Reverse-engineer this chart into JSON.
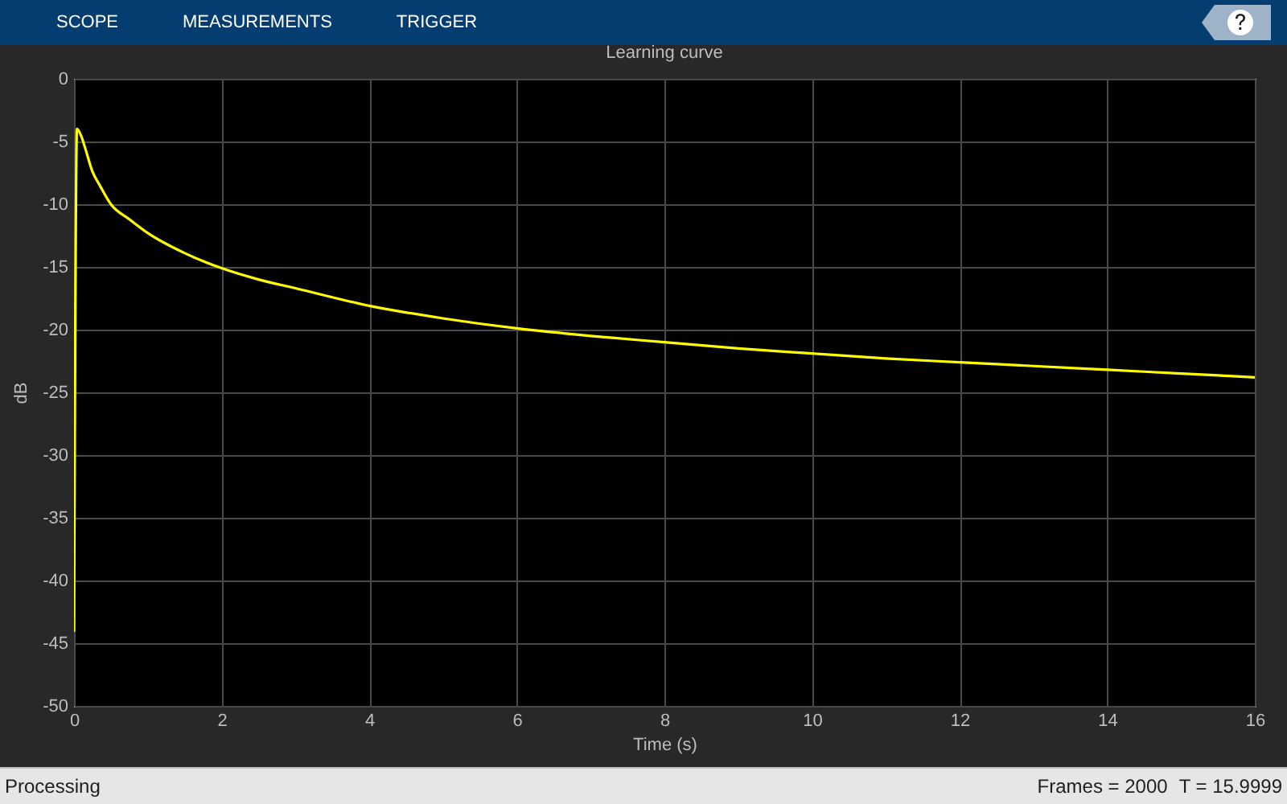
{
  "chart_data": {
    "type": "line",
    "title": "Learning curve",
    "xlabel": "Time (s)",
    "ylabel": "dB",
    "x": [
      0,
      0.04,
      0.1,
      0.15,
      0.25,
      0.35,
      0.5,
      0.75,
      1,
      1.5,
      2,
      2.5,
      3,
      4,
      5,
      6,
      7,
      8,
      9,
      10,
      11,
      12,
      13,
      14,
      15,
      16
    ],
    "series": [
      {
        "color": "#ffff00",
        "values": [
          -44,
          -4,
          -4.6,
          -5.5,
          -7.4,
          -8.5,
          -10,
          -11.2,
          -12.3,
          -13.9,
          -15.1,
          -16,
          -16.7,
          -18.1,
          -19.1,
          -19.9,
          -20.5,
          -21,
          -21.5,
          -21.9,
          -22.3,
          -22.6,
          -22.9,
          -23.2,
          -23.5,
          -23.8
        ]
      }
    ],
    "xlim": [
      0,
      16
    ],
    "xticks": [
      0,
      2,
      4,
      6,
      8,
      10,
      12,
      14,
      16
    ],
    "ylim": [
      -50,
      0
    ],
    "yticks": [
      0,
      -5,
      -10,
      -15,
      -20,
      -25,
      -30,
      -35,
      -40,
      -45,
      -50
    ],
    "grid": true,
    "annotations": [
      "SCOPE",
      "MEASUREMENTS",
      "TRIGGER",
      "Processing",
      "Frames = 2000",
      "T = 15.9999"
    ]
  }
}
